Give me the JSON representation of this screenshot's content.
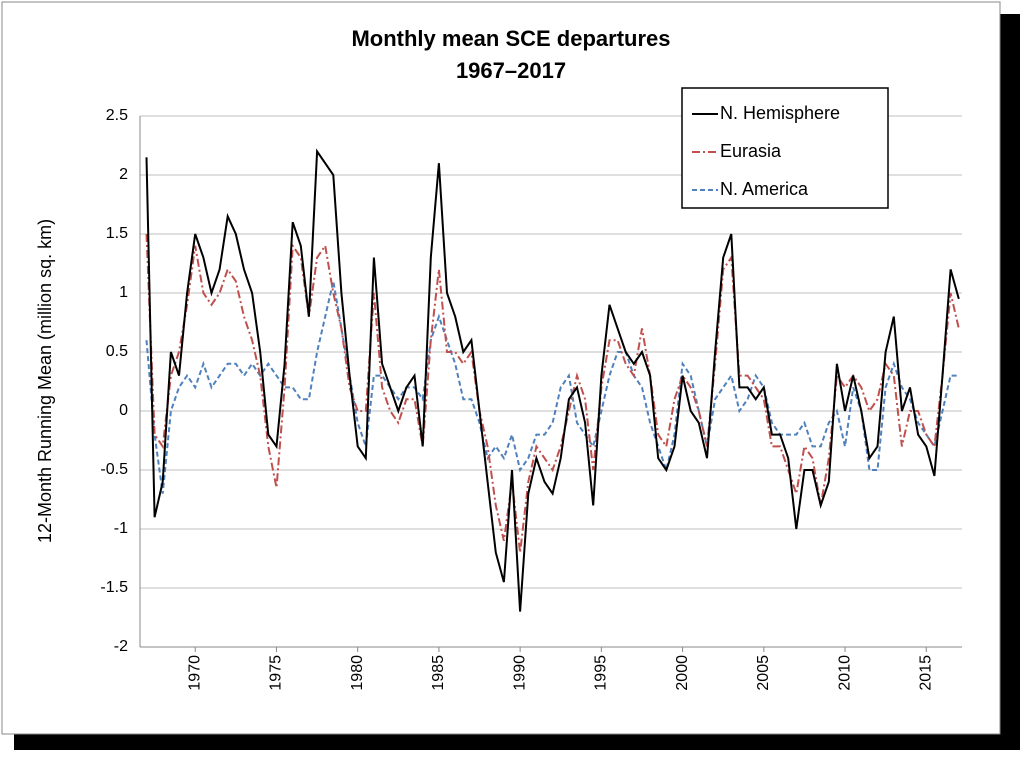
{
  "chart_data": {
    "type": "line",
    "title": "Monthly mean SCE departures",
    "subtitle": "1967–2017",
    "y_label": "12-Month Running Mean (million sq. km)",
    "x": [
      1967,
      1967.5,
      1968,
      1968.5,
      1969,
      1969.5,
      1970,
      1970.5,
      1971,
      1971.5,
      1972,
      1972.5,
      1973,
      1973.5,
      1974,
      1974.5,
      1975,
      1975.5,
      1976,
      1976.5,
      1977,
      1977.5,
      1978,
      1978.5,
      1979,
      1979.5,
      1980,
      1980.5,
      1981,
      1981.5,
      1982,
      1982.5,
      1983,
      1983.5,
      1984,
      1984.5,
      1985,
      1985.5,
      1986,
      1986.5,
      1987,
      1987.5,
      1988,
      1988.5,
      1989,
      1989.5,
      1990,
      1990.5,
      1991,
      1991.5,
      1992,
      1992.5,
      1993,
      1993.5,
      1994,
      1994.5,
      1995,
      1995.5,
      1996,
      1996.5,
      1997,
      1997.5,
      1998,
      1998.5,
      1999,
      1999.5,
      2000,
      2000.5,
      2001,
      2001.5,
      2002,
      2002.5,
      2003,
      2003.5,
      2004,
      2004.5,
      2005,
      2005.5,
      2006,
      2006.5,
      2007,
      2007.5,
      2008,
      2008.5,
      2009,
      2009.5,
      2010,
      2010.5,
      2011,
      2011.5,
      2012,
      2012.5,
      2013,
      2013.5,
      2014,
      2014.5,
      2015,
      2015.5,
      2016,
      2016.5,
      2017
    ],
    "series": [
      {
        "name": "N. Hemisphere",
        "color": "#000000",
        "style": "solid",
        "values": [
          2.15,
          -0.9,
          -0.6,
          0.5,
          0.3,
          1.0,
          1.5,
          1.3,
          1.0,
          1.2,
          1.65,
          1.5,
          1.2,
          1.0,
          0.5,
          -0.2,
          -0.3,
          0.4,
          1.6,
          1.4,
          0.8,
          2.2,
          2.1,
          2.0,
          1.0,
          0.3,
          -0.3,
          -0.4,
          1.3,
          0.4,
          0.2,
          0.0,
          0.2,
          0.3,
          -0.3,
          1.3,
          2.1,
          1.0,
          0.8,
          0.5,
          0.6,
          0.0,
          -0.6,
          -1.2,
          -1.45,
          -0.5,
          -1.7,
          -0.7,
          -0.4,
          -0.6,
          -0.7,
          -0.4,
          0.1,
          0.2,
          -0.1,
          -0.8,
          0.3,
          0.9,
          0.7,
          0.5,
          0.4,
          0.5,
          0.3,
          -0.4,
          -0.5,
          -0.3,
          0.3,
          0.0,
          -0.1,
          -0.4,
          0.5,
          1.3,
          1.5,
          0.2,
          0.2,
          0.1,
          0.2,
          -0.2,
          -0.2,
          -0.4,
          -1.0,
          -0.5,
          -0.5,
          -0.8,
          -0.6,
          0.4,
          0.0,
          0.3,
          0.0,
          -0.4,
          -0.3,
          0.5,
          0.8,
          0.0,
          0.2,
          -0.2,
          -0.3,
          -0.55,
          0.3,
          1.2,
          0.95
        ]
      },
      {
        "name": "Eurasia",
        "color": "#c0504d",
        "style": "dashdot",
        "values": [
          1.5,
          -0.2,
          -0.3,
          0.3,
          0.5,
          0.9,
          1.4,
          1.0,
          0.9,
          1.0,
          1.2,
          1.1,
          0.8,
          0.6,
          0.3,
          -0.3,
          -0.65,
          0.2,
          1.4,
          1.3,
          0.8,
          1.3,
          1.4,
          1.0,
          0.7,
          0.2,
          0.0,
          0.0,
          1.0,
          0.2,
          0.0,
          -0.1,
          0.1,
          0.1,
          -0.3,
          0.6,
          1.2,
          0.5,
          0.5,
          0.4,
          0.5,
          0.0,
          -0.3,
          -0.8,
          -1.1,
          -0.6,
          -1.2,
          -0.6,
          -0.3,
          -0.4,
          -0.5,
          -0.3,
          0.0,
          0.3,
          0.1,
          -0.5,
          0.2,
          0.6,
          0.6,
          0.4,
          0.3,
          0.7,
          0.3,
          -0.2,
          -0.3,
          0.1,
          0.3,
          0.2,
          0.0,
          -0.3,
          0.4,
          1.2,
          1.3,
          0.3,
          0.3,
          0.2,
          0.1,
          -0.3,
          -0.3,
          -0.5,
          -0.7,
          -0.3,
          -0.4,
          -0.8,
          -0.4,
          0.3,
          0.2,
          0.3,
          0.2,
          0.0,
          0.1,
          0.4,
          0.3,
          -0.3,
          0.0,
          0.0,
          -0.2,
          -0.3,
          0.3,
          1.0,
          0.7
        ]
      },
      {
        "name": "N. America",
        "color": "#4f81bd",
        "style": "dashed",
        "values": [
          0.6,
          -0.2,
          -0.7,
          0.0,
          0.2,
          0.3,
          0.2,
          0.4,
          0.2,
          0.3,
          0.4,
          0.4,
          0.3,
          0.4,
          0.3,
          0.4,
          0.3,
          0.2,
          0.2,
          0.1,
          0.1,
          0.5,
          0.8,
          1.1,
          0.7,
          0.3,
          -0.1,
          -0.3,
          0.3,
          0.3,
          0.2,
          0.1,
          0.2,
          0.2,
          0.1,
          0.6,
          0.8,
          0.6,
          0.4,
          0.1,
          0.1,
          -0.1,
          -0.4,
          -0.3,
          -0.4,
          -0.2,
          -0.5,
          -0.4,
          -0.2,
          -0.2,
          -0.1,
          0.2,
          0.3,
          -0.1,
          -0.2,
          -0.3,
          0.0,
          0.3,
          0.5,
          0.5,
          0.3,
          0.2,
          -0.1,
          -0.3,
          -0.5,
          -0.2,
          0.4,
          0.3,
          0.0,
          -0.3,
          0.1,
          0.2,
          0.3,
          0.0,
          0.1,
          0.3,
          0.2,
          -0.1,
          -0.2,
          -0.2,
          -0.2,
          -0.1,
          -0.3,
          -0.3,
          -0.1,
          0.0,
          -0.3,
          0.2,
          0.0,
          -0.5,
          -0.5,
          0.2,
          0.4,
          0.2,
          0.1,
          -0.1,
          -0.2,
          -0.3,
          0.0,
          0.3,
          0.3
        ]
      }
    ],
    "xlim": [
      1966.6,
      2017.2
    ],
    "xticks": [
      1970,
      1975,
      1980,
      1985,
      1990,
      1995,
      2000,
      2005,
      2010,
      2015
    ],
    "ylim": [
      -2,
      2.5
    ],
    "yticks": [
      -2,
      -1.5,
      -1,
      -0.5,
      0,
      0.5,
      1,
      1.5,
      2,
      2.5
    ],
    "grid": true,
    "legend": "upper right"
  }
}
